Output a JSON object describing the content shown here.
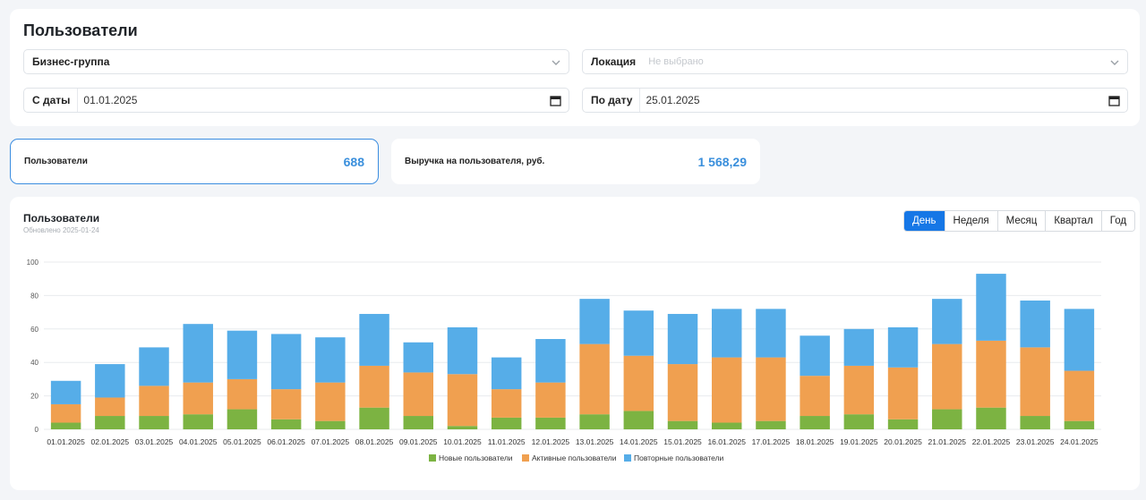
{
  "page": {
    "title": "Пользователи"
  },
  "filters": {
    "business_group": {
      "label": "Бизнес-группа"
    },
    "location": {
      "label": "Локация",
      "placeholder": "Не выбрано"
    },
    "date_from": {
      "label": "С даты",
      "value": "01.01.2025"
    },
    "date_to": {
      "label": "По дату",
      "value": "25.01.2025"
    }
  },
  "kpis": [
    {
      "label": "Пользователи",
      "value": "688"
    },
    {
      "label": "Выручка на пользователя, руб.",
      "value": "1 568,29"
    }
  ],
  "chart_card": {
    "title": "Пользователи",
    "updated": "Обновлено 2025-01-24",
    "periods": [
      "День",
      "Неделя",
      "Месяц",
      "Квартал",
      "Год"
    ],
    "active_period": "День"
  },
  "colors": {
    "new": "#7cb342",
    "active": "#f0a050",
    "repeat": "#56ade8",
    "accent": "#1677e6"
  },
  "chart_data": {
    "type": "bar",
    "stacked": true,
    "categories": [
      "01.01.2025",
      "02.01.2025",
      "03.01.2025",
      "04.01.2025",
      "05.01.2025",
      "06.01.2025",
      "07.01.2025",
      "08.01.2025",
      "09.01.2025",
      "10.01.2025",
      "11.01.2025",
      "12.01.2025",
      "13.01.2025",
      "14.01.2025",
      "15.01.2025",
      "16.01.2025",
      "17.01.2025",
      "18.01.2025",
      "19.01.2025",
      "20.01.2025",
      "21.01.2025",
      "22.01.2025",
      "23.01.2025",
      "24.01.2025"
    ],
    "series": [
      {
        "name": "Новые пользователи",
        "values": [
          4,
          8,
          8,
          9,
          12,
          6,
          5,
          13,
          8,
          2,
          7,
          7,
          9,
          11,
          5,
          4,
          5,
          8,
          9,
          6,
          12,
          13,
          8,
          5
        ]
      },
      {
        "name": "Активные пользователи",
        "values": [
          11,
          11,
          18,
          19,
          18,
          18,
          23,
          25,
          26,
          31,
          17,
          21,
          42,
          33,
          34,
          39,
          38,
          24,
          29,
          31,
          39,
          40,
          41,
          30
        ]
      },
      {
        "name": "Повторные пользователи",
        "values": [
          14,
          20,
          23,
          35,
          29,
          33,
          27,
          31,
          18,
          28,
          19,
          26,
          27,
          27,
          30,
          29,
          29,
          24,
          22,
          24,
          27,
          40,
          28,
          37
        ]
      }
    ],
    "yticks": [
      0,
      20,
      40,
      60,
      80,
      100
    ],
    "ylim": [
      0,
      100
    ],
    "grid": true,
    "legend": "bottom"
  }
}
